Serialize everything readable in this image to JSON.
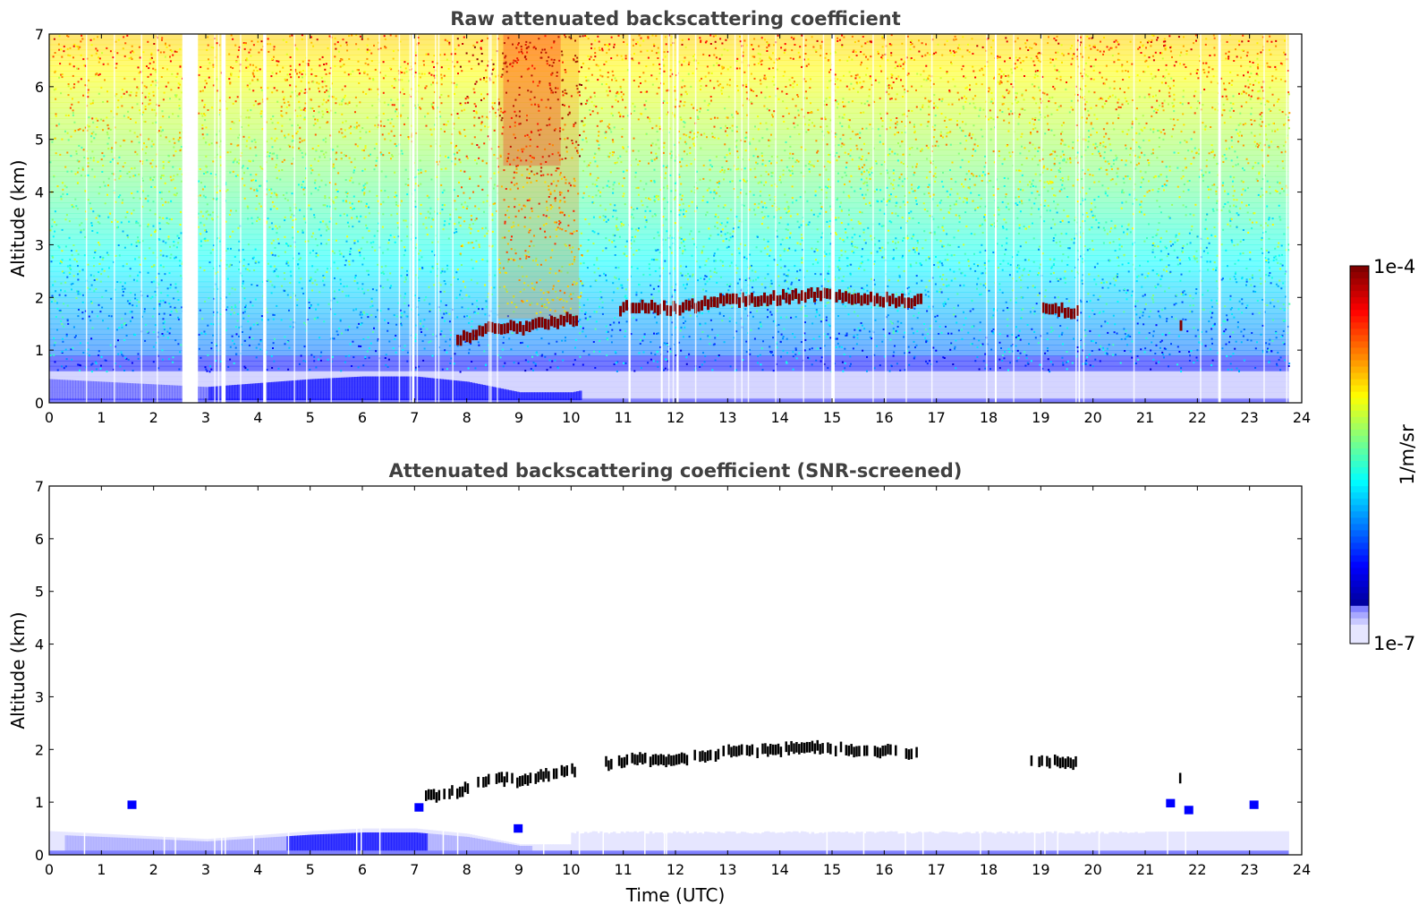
{
  "colors": {
    "jet": [
      "#00008f",
      "#0000ff",
      "#0080ff",
      "#00ffff",
      "#80ff80",
      "#ffff00",
      "#ff8000",
      "#ff0000",
      "#800000"
    ],
    "low": [
      "#e6e6ff",
      "#c8c8ff",
      "#a8a8ff",
      "#8080ff"
    ],
    "cloud_dark": "#000000"
  },
  "colorbar": {
    "max_label": "1e-4",
    "min_label": "1e-7",
    "unit_label": "1/m/sr",
    "scale": "log"
  },
  "chart_data": [
    {
      "type": "heatmap",
      "id": "raw",
      "title": "Raw attenuated backscattering coefficient",
      "xlabel": "",
      "ylabel": "Altitude (km)",
      "xlim": [
        0,
        24
      ],
      "ylim": [
        0,
        7
      ],
      "x_ticks": [
        "0",
        "1",
        "2",
        "3",
        "4",
        "5",
        "6",
        "7",
        "8",
        "9",
        "10",
        "11",
        "12",
        "13",
        "14",
        "15",
        "16",
        "17",
        "18",
        "19",
        "20",
        "21",
        "22",
        "23",
        "24"
      ],
      "y_ticks": [
        "0",
        "1",
        "2",
        "3",
        "4",
        "5",
        "6",
        "7"
      ],
      "data_end_time": 23.75,
      "cloud_layer": [
        [
          7.8,
          1.2
        ],
        [
          8.5,
          1.45
        ],
        [
          9.0,
          1.4
        ],
        [
          9.5,
          1.5
        ],
        [
          10.0,
          1.6
        ],
        [
          11.0,
          1.8
        ],
        [
          12.0,
          1.8
        ],
        [
          13.0,
          1.95
        ],
        [
          14.0,
          2.0
        ],
        [
          14.6,
          2.05
        ],
        [
          15.2,
          2.0
        ],
        [
          16.2,
          1.95
        ],
        [
          19.5,
          1.75
        ],
        [
          21.7,
          1.42
        ]
      ],
      "no_data_gaps_hours": [
        [
          2.55,
          2.85
        ],
        [
          3.3,
          3.38
        ],
        [
          4.1,
          4.16
        ],
        [
          6.95,
          7.0
        ],
        [
          11.1,
          11.14
        ],
        [
          11.72,
          11.75
        ],
        [
          12.02,
          12.06
        ],
        [
          15.0,
          15.05
        ],
        [
          18.12,
          18.15
        ],
        [
          22.4,
          22.45
        ]
      ]
    },
    {
      "type": "heatmap",
      "id": "screened",
      "title": "Attenuated backscattering coefficient (SNR-screened)",
      "xlabel": "Time (UTC)",
      "ylabel": "Altitude (km)",
      "xlim": [
        0,
        24
      ],
      "ylim": [
        0,
        7
      ],
      "x_ticks": [
        "0",
        "1",
        "2",
        "3",
        "4",
        "5",
        "6",
        "7",
        "8",
        "9",
        "10",
        "11",
        "12",
        "13",
        "14",
        "15",
        "16",
        "17",
        "18",
        "19",
        "20",
        "21",
        "22",
        "23",
        "24"
      ],
      "y_ticks": [
        "0",
        "1",
        "2",
        "3",
        "4",
        "5",
        "6",
        "7"
      ],
      "data_end_time": 23.75,
      "cloud_layer": [
        [
          7.2,
          1.1
        ],
        [
          7.8,
          1.2
        ],
        [
          8.5,
          1.45
        ],
        [
          9.0,
          1.4
        ],
        [
          9.5,
          1.5
        ],
        [
          10.0,
          1.6
        ],
        [
          11.0,
          1.8
        ],
        [
          12.0,
          1.8
        ],
        [
          13.0,
          1.95
        ],
        [
          14.0,
          2.0
        ],
        [
          14.6,
          2.05
        ],
        [
          15.2,
          2.0
        ],
        [
          16.2,
          1.95
        ],
        [
          19.5,
          1.75
        ],
        [
          21.7,
          1.42
        ]
      ],
      "boundary_layer_top": [
        [
          0.0,
          0.45
        ],
        [
          1.0,
          0.4
        ],
        [
          3.0,
          0.3
        ],
        [
          5.0,
          0.45
        ],
        [
          6.0,
          0.5
        ],
        [
          7.0,
          0.5
        ],
        [
          8.0,
          0.4
        ],
        [
          9.0,
          0.2
        ],
        [
          10.0,
          0.2
        ],
        [
          11.0,
          0.4
        ],
        [
          24.0,
          0.45
        ]
      ]
    }
  ]
}
